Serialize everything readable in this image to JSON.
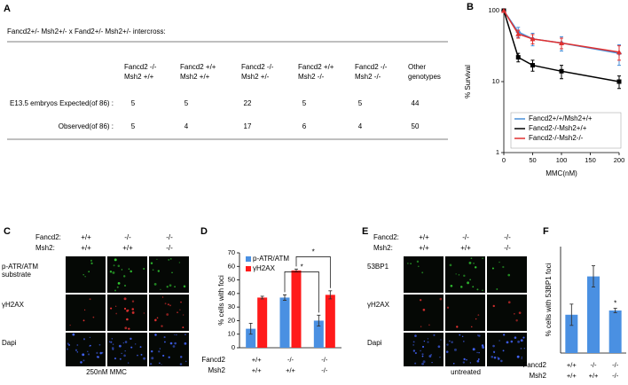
{
  "panels": {
    "a": "A",
    "b": "B",
    "c": "C",
    "d": "D",
    "e": "E",
    "f": "F"
  },
  "table": {
    "title": "Fancd2+/- Msh2+/- x Fand2+/- Msh2+/- intercross:",
    "columns": [
      [
        "Fancd2 -/-",
        "Msh2  +/+"
      ],
      [
        "Fancd2 +/+",
        "Msh2  +/+"
      ],
      [
        "Fancd2 -/-",
        "Msh2  +/-"
      ],
      [
        "Fancd2 +/+",
        "Msh2  -/-"
      ],
      [
        "Fancd2 -/-",
        "Msh2  -/-"
      ],
      [
        "Other",
        "genotypes"
      ]
    ],
    "rows": [
      {
        "label": "E13.5 embryos Expected(of 86) :",
        "cells": [
          5,
          5,
          22,
          5,
          5,
          44
        ]
      },
      {
        "label": "Observed(of 86) :",
        "cells": [
          5,
          4,
          17,
          6,
          4,
          50
        ]
      }
    ]
  },
  "image_panels": [
    {
      "genotype_rows": [
        {
          "label": "Fancd2:",
          "values": [
            "+/+",
            "-/-",
            "-/-"
          ]
        },
        {
          "label": "Msh2:",
          "values": [
            "+/+",
            "+/+",
            "-/-"
          ]
        }
      ],
      "row_labels": [
        [
          "p-ATR/ATM",
          "substrate"
        ],
        [
          "γH2AX"
        ],
        [
          "Dapi"
        ]
      ],
      "caption": "250nM MMC"
    },
    {
      "genotype_rows": [
        {
          "label": "Fancd2:",
          "values": [
            "+/+",
            "-/-",
            "-/-"
          ]
        },
        {
          "label": "Msh2:",
          "values": [
            "+/+",
            "+/+",
            "-/-"
          ]
        }
      ],
      "row_labels": [
        [
          "53BP1"
        ],
        [
          "γH2AX"
        ],
        [
          "Dapi"
        ]
      ],
      "caption": "untreated"
    }
  ],
  "chart_data": [
    {
      "type": "line",
      "ylabel": "% Survival",
      "xlabel": "MMC(nM)",
      "x": [
        0,
        25,
        50,
        100,
        200
      ],
      "xlim": [
        0,
        200
      ],
      "xticks": [
        0,
        50,
        100,
        150,
        200
      ],
      "ylim": [
        1,
        100
      ],
      "yticks": [
        1,
        10,
        100
      ],
      "log_y": true,
      "legend": "lower",
      "series": [
        {
          "name": "Fancd2+/+/Msh2+/+",
          "color": "#4a90d9",
          "marker": "diamond",
          "values": [
            100,
            50,
            40,
            35,
            25
          ],
          "errors": [
            0,
            8,
            8,
            8,
            8
          ]
        },
        {
          "name": "Fancd2-/-Msh2+/+",
          "color": "#000000",
          "marker": "square",
          "values": [
            100,
            22,
            17,
            14,
            10
          ],
          "errors": [
            0,
            3,
            3,
            3,
            2
          ]
        },
        {
          "name": "Fancd2-/-Msh2-/-",
          "color": "#e03030",
          "marker": "triangle",
          "values": [
            100,
            47,
            40,
            35,
            26
          ],
          "errors": [
            0,
            6,
            6,
            6,
            6
          ]
        }
      ]
    },
    {
      "type": "bar",
      "ylabel": "% cells with foci",
      "ylim": [
        0,
        70
      ],
      "yticks": [
        0,
        10,
        20,
        30,
        40,
        50,
        60,
        70
      ],
      "genotype_rows": [
        {
          "label": "Fancd2",
          "values": [
            "+/+",
            "-/-",
            "-/-"
          ]
        },
        {
          "label": "Msh2",
          "values": [
            "+/+",
            "+/+",
            "-/-"
          ]
        }
      ],
      "series": [
        {
          "name": "p-ATR/ATM",
          "color": "#4a90e2",
          "values": [
            14,
            37,
            20
          ],
          "errors": [
            4,
            2,
            4
          ]
        },
        {
          "name": "γH2AX",
          "color": "#ff1a1a",
          "values": [
            37,
            57,
            39
          ],
          "errors": [
            1,
            1,
            3
          ]
        }
      ],
      "annotations": [
        "*",
        "*"
      ]
    },
    {
      "type": "bar",
      "ylabel": "% cells with 53BP1 foci",
      "ylim": [
        0,
        50
      ],
      "genotype_rows": [
        {
          "label": "Fancd2",
          "values": [
            "+/+",
            "-/-",
            "-/-"
          ]
        },
        {
          "label": "Msh2",
          "values": [
            "+/+",
            "+/+",
            "-/-"
          ]
        }
      ],
      "series": [
        {
          "color": "#4a90e2",
          "values": [
            18,
            36,
            20
          ],
          "errors": [
            5,
            5,
            1
          ]
        }
      ],
      "annotations": [
        "*"
      ]
    }
  ]
}
